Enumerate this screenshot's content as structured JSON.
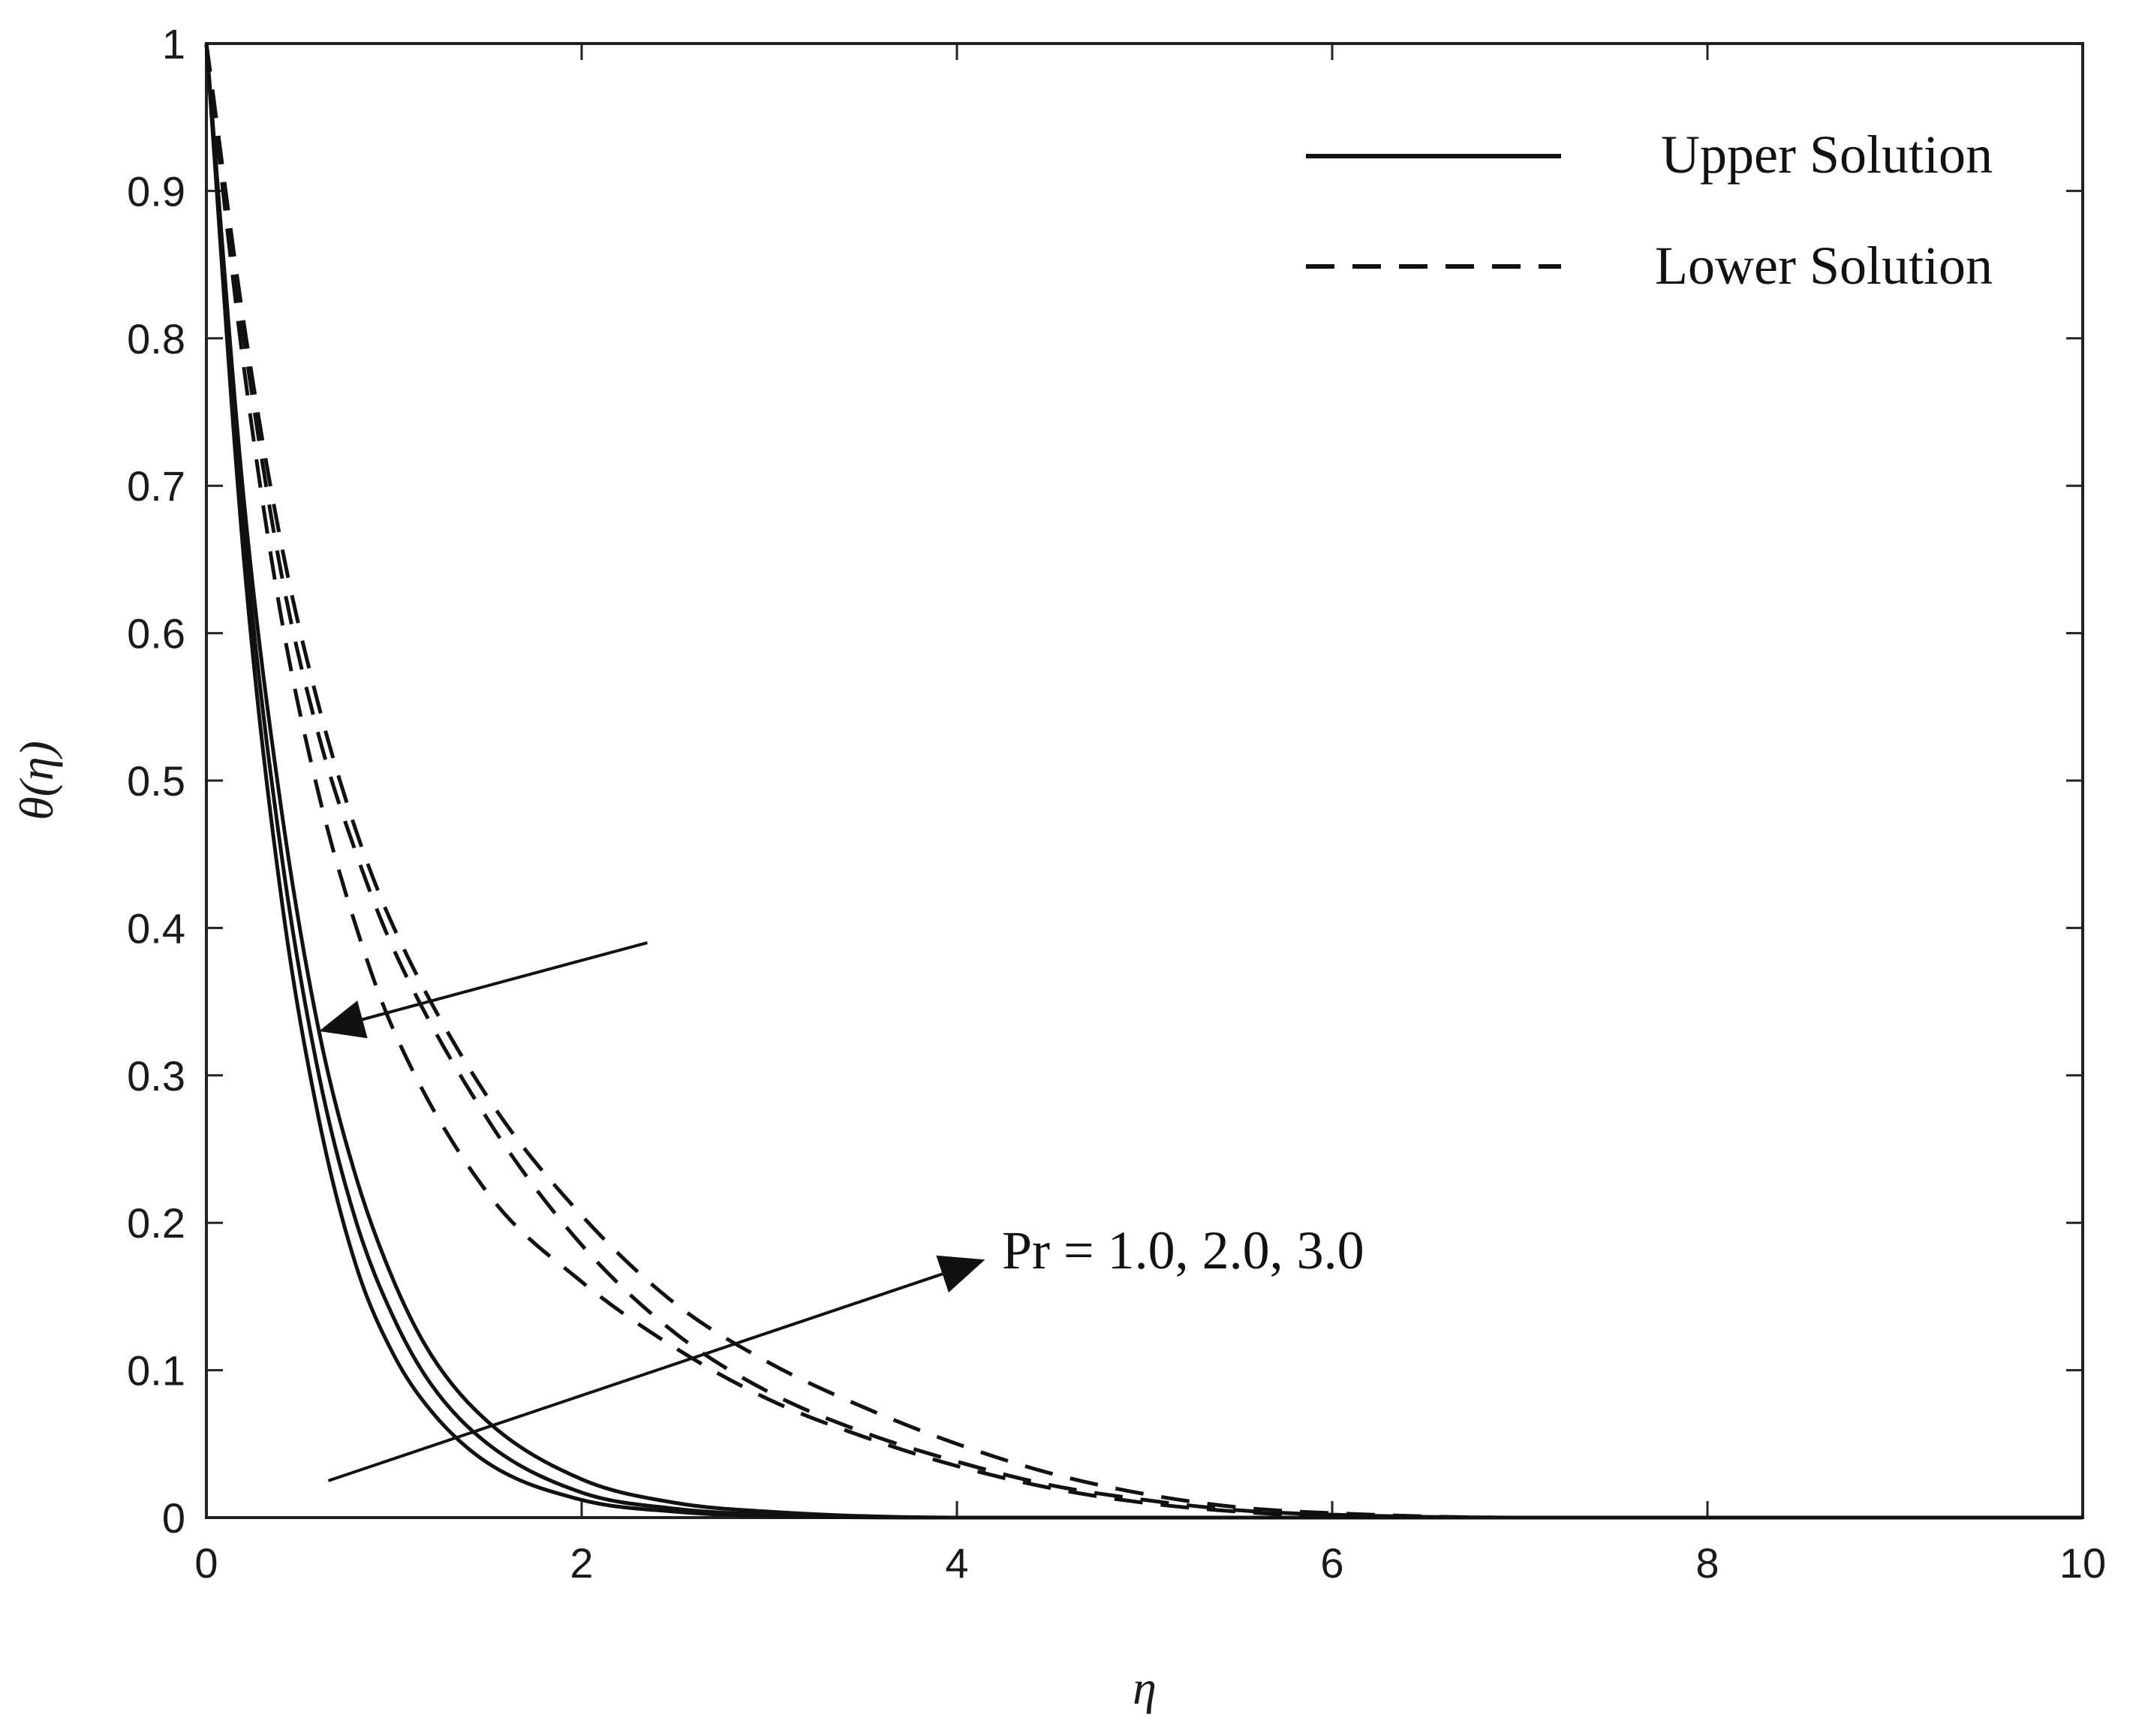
{
  "chart_data": {
    "type": "line",
    "title": "",
    "xlabel": "η",
    "ylabel": "θ(η)",
    "xlim": [
      0,
      10
    ],
    "ylim": [
      0,
      1
    ],
    "xticks": [
      0,
      2,
      4,
      6,
      8,
      10
    ],
    "yticks": [
      0,
      0.1,
      0.2,
      0.3,
      0.4,
      0.5,
      0.6,
      0.7,
      0.8,
      0.9,
      1
    ],
    "ytick_labels": [
      "0",
      "0.1",
      "0.2",
      "0.3",
      "0.4",
      "0.5",
      "0.6",
      "0.7",
      "0.8",
      "0.9",
      "1"
    ],
    "xtick_labels": [
      "0",
      "2",
      "4",
      "6",
      "8",
      "10"
    ],
    "grid": false,
    "legend_position": "top-right",
    "legend": [
      {
        "label": "Upper Solution",
        "style": "solid"
      },
      {
        "label": "Lower Solution",
        "style": "dashed"
      }
    ],
    "annotation": "Pr = 1.0, 2.0, 3.0",
    "series": [
      {
        "group": "Upper Solution",
        "style": "solid",
        "x": [
          0,
          0.2,
          0.4,
          0.6,
          0.8,
          1.0,
          1.2,
          1.5,
          2.0,
          2.5,
          3.0,
          4.0,
          10
        ],
        "y": [
          1,
          0.65,
          0.42,
          0.27,
          0.17,
          0.11,
          0.072,
          0.037,
          0.012,
          0.004,
          0.001,
          0,
          0
        ]
      },
      {
        "group": "Upper Solution",
        "style": "solid",
        "x": [
          0,
          0.2,
          0.4,
          0.6,
          0.8,
          1.0,
          1.2,
          1.5,
          2.0,
          2.5,
          3.0,
          4.0,
          10
        ],
        "y": [
          1,
          0.67,
          0.45,
          0.3,
          0.2,
          0.135,
          0.09,
          0.05,
          0.017,
          0.006,
          0.002,
          0,
          0
        ]
      },
      {
        "group": "Upper Solution",
        "style": "solid",
        "x": [
          0,
          0.2,
          0.4,
          0.6,
          0.8,
          1.0,
          1.2,
          1.5,
          2.0,
          2.5,
          3.0,
          4.0,
          10
        ],
        "y": [
          1,
          0.69,
          0.48,
          0.33,
          0.23,
          0.16,
          0.11,
          0.065,
          0.026,
          0.01,
          0.004,
          0,
          0
        ]
      },
      {
        "group": "Lower Solution",
        "style": "dashed",
        "x": [
          0,
          0.2,
          0.4,
          0.6,
          0.8,
          1.0,
          1.5,
          2.0,
          2.5,
          3.0,
          3.5,
          4.0,
          4.5,
          5.0,
          5.5,
          6.0,
          7.0,
          10
        ],
        "y": [
          1,
          0.78,
          0.61,
          0.49,
          0.4,
          0.33,
          0.22,
          0.16,
          0.115,
          0.08,
          0.055,
          0.035,
          0.02,
          0.01,
          0.004,
          0.001,
          0,
          0
        ]
      },
      {
        "group": "Lower Solution",
        "style": "dashed",
        "x": [
          0,
          0.2,
          0.4,
          0.6,
          0.8,
          1.0,
          1.5,
          2.0,
          2.5,
          3.0,
          3.5,
          4.0,
          4.5,
          5.0,
          5.5,
          6.0,
          7.0,
          10
        ],
        "y": [
          1,
          0.8,
          0.64,
          0.53,
          0.45,
          0.385,
          0.27,
          0.185,
          0.125,
          0.085,
          0.058,
          0.038,
          0.022,
          0.012,
          0.005,
          0.002,
          0,
          0
        ]
      },
      {
        "group": "Lower Solution",
        "style": "dashed",
        "x": [
          0,
          0.2,
          0.4,
          0.6,
          0.8,
          1.0,
          1.5,
          2.0,
          2.5,
          3.0,
          3.5,
          4.0,
          4.5,
          5.0,
          5.5,
          6.0,
          7.0,
          10
        ],
        "y": [
          1,
          0.81,
          0.66,
          0.55,
          0.465,
          0.4,
          0.285,
          0.205,
          0.145,
          0.105,
          0.075,
          0.05,
          0.03,
          0.016,
          0.007,
          0.003,
          0,
          0
        ]
      }
    ],
    "arrows": [
      {
        "from": [
          2.35,
          0.39
        ],
        "to": [
          0.6,
          0.33
        ]
      },
      {
        "from": [
          0.65,
          0.025
        ],
        "to": [
          4.15,
          0.175
        ]
      }
    ]
  }
}
